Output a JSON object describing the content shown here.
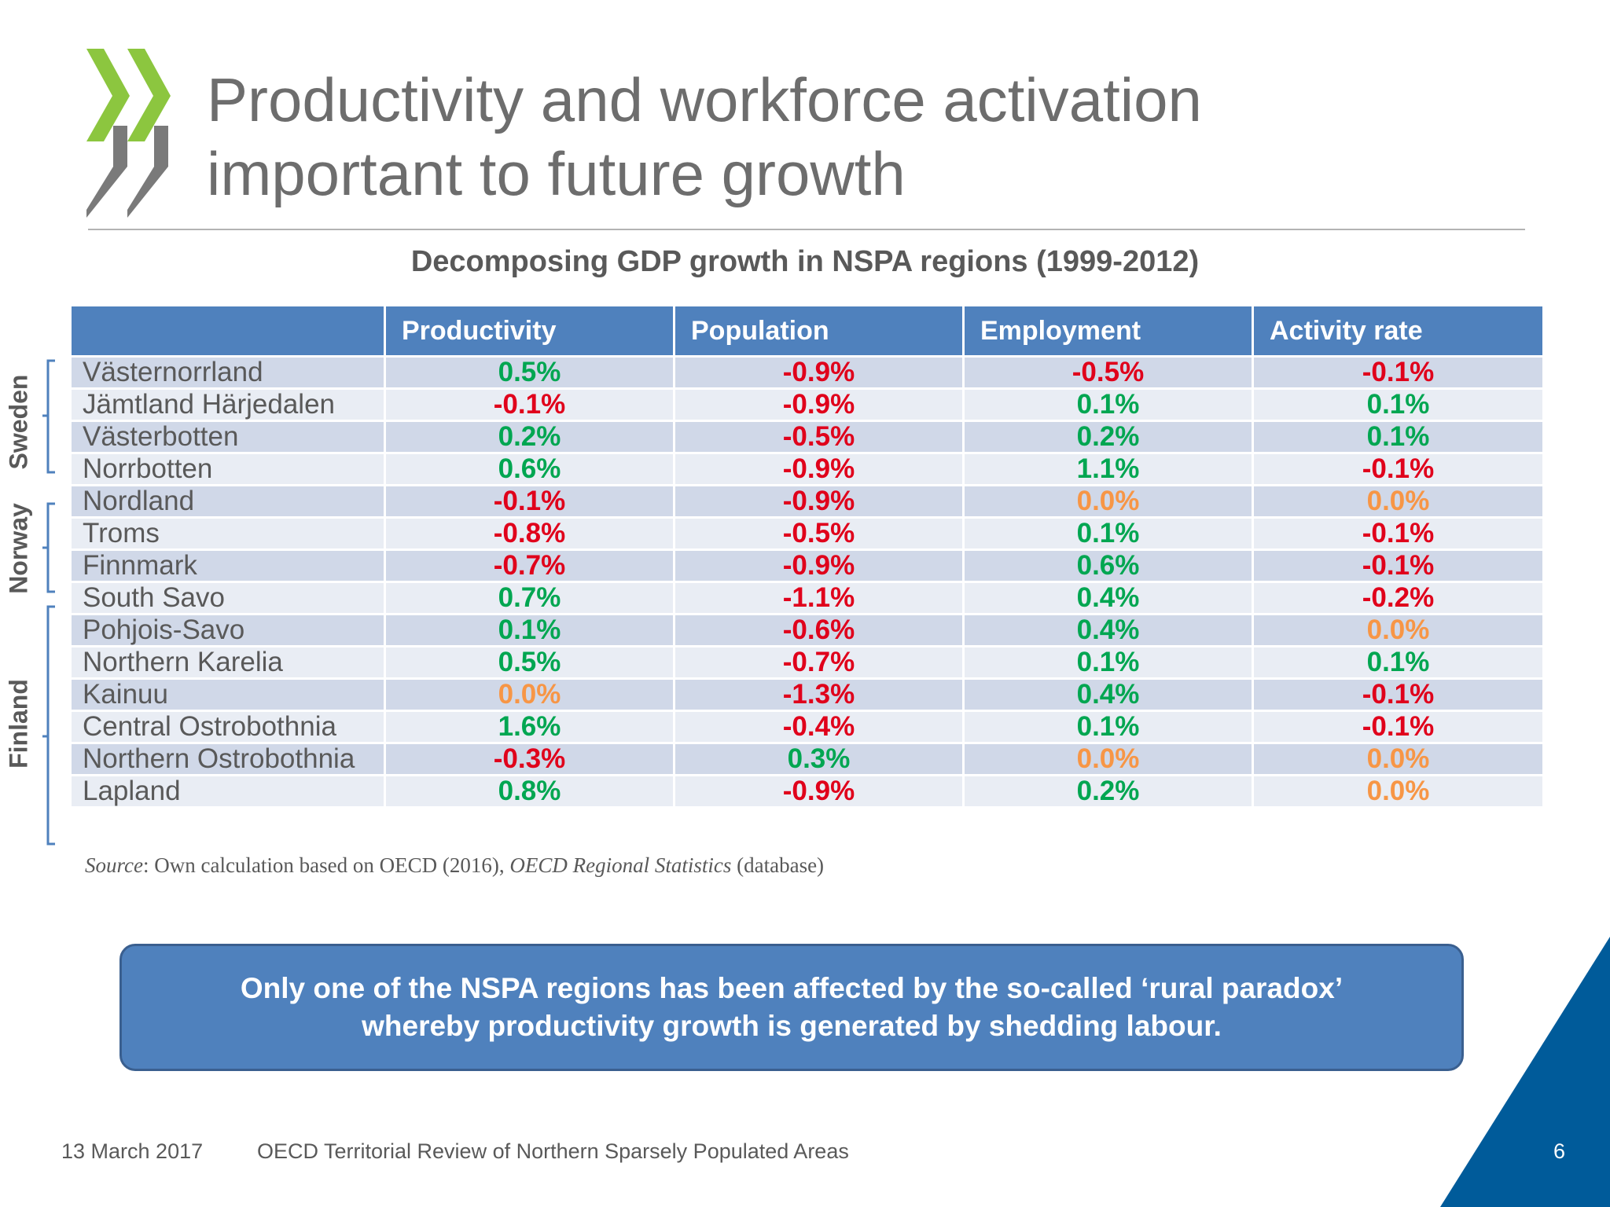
{
  "title_lines": [
    "Productivity and workforce activation",
    "important to future growth"
  ],
  "subtitle": "Decomposing GDP growth in NSPA regions (1999-2012)",
  "headers": [
    "",
    "Productivity",
    "Population",
    "Employment",
    "Activity rate"
  ],
  "rows": [
    {
      "region": "Västernorrland",
      "values": [
        "0.5%",
        "-0.9%",
        "-0.5%",
        "-0.1%"
      ]
    },
    {
      "region": "Jämtland Härjedalen",
      "values": [
        "-0.1%",
        "-0.9%",
        "0.1%",
        "0.1%"
      ]
    },
    {
      "region": "Västerbotten",
      "values": [
        "0.2%",
        "-0.5%",
        "0.2%",
        "0.1%"
      ]
    },
    {
      "region": "Norrbotten",
      "values": [
        "0.6%",
        "-0.9%",
        "1.1%",
        "-0.1%"
      ]
    },
    {
      "region": "Nordland",
      "values": [
        "-0.1%",
        "-0.9%",
        "0.0%",
        "0.0%"
      ]
    },
    {
      "region": "Troms",
      "values": [
        "-0.8%",
        "-0.5%",
        "0.1%",
        "-0.1%"
      ]
    },
    {
      "region": "Finnmark",
      "values": [
        "-0.7%",
        "-0.9%",
        "0.6%",
        "-0.1%"
      ]
    },
    {
      "region": "South Savo",
      "values": [
        "0.7%",
        "-1.1%",
        "0.4%",
        "-0.2%"
      ]
    },
    {
      "region": "Pohjois-Savo",
      "values": [
        "0.1%",
        "-0.6%",
        "0.4%",
        "0.0%"
      ]
    },
    {
      "region": "Northern Karelia",
      "values": [
        "0.5%",
        "-0.7%",
        "0.1%",
        "0.1%"
      ]
    },
    {
      "region": "Kainuu",
      "values": [
        "0.0%",
        "-1.3%",
        "0.4%",
        "-0.1%"
      ]
    },
    {
      "region": "Central Ostrobothnia",
      "values": [
        "1.6%",
        "-0.4%",
        "0.1%",
        "-0.1%"
      ]
    },
    {
      "region": "Northern Ostrobothnia",
      "values": [
        "-0.3%",
        "0.3%",
        "0.0%",
        "0.0%"
      ]
    },
    {
      "region": "Lapland",
      "values": [
        "0.8%",
        "-0.9%",
        "0.2%",
        "0.0%"
      ]
    }
  ],
  "countries": [
    "Sweden",
    "Norway",
    "Finland"
  ],
  "source": {
    "label": "Source",
    "text1": ": Own calculation based on OECD (2016), ",
    "italic": "OECD Regional Statistics",
    "text2": " (database)"
  },
  "callout_lines": [
    "Only one of the NSPA regions has been affected by the so-called ‘rural paradox’",
    "whereby productivity growth is generated by shedding labour."
  ],
  "footer": {
    "date": "13 March 2017",
    "text": "OECD Territorial Review of Northern Sparsely Populated Areas",
    "page": "6"
  },
  "colors": {
    "header": "#4f81bd",
    "positive": "#00a651",
    "negative": "#e0001b",
    "zero": "#f79646",
    "logo_green": "#8cc63f",
    "logo_grey": "#7a7a7a",
    "corner_blue": "#005b9a"
  }
}
